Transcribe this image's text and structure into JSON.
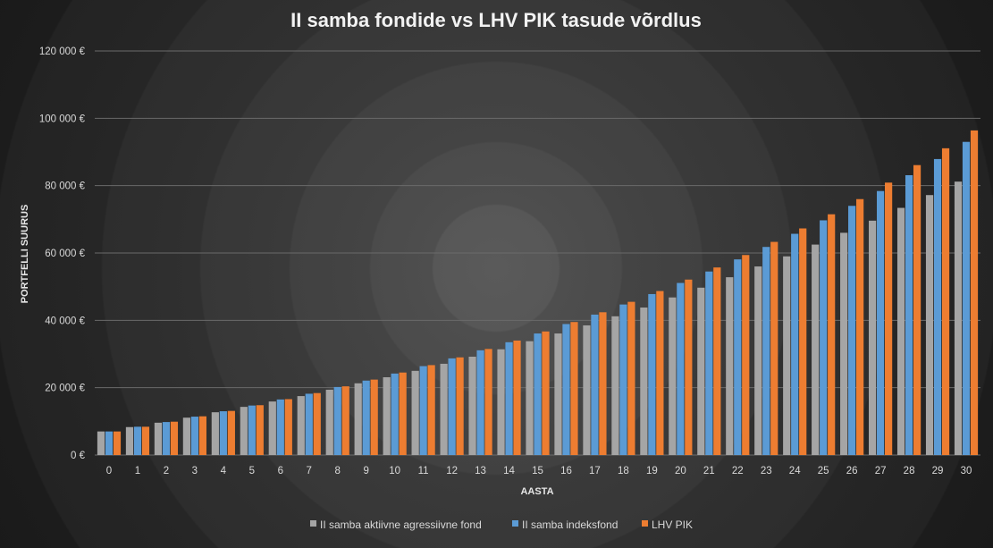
{
  "chart_data": {
    "type": "bar",
    "title": "II samba fondide vs LHV PIK tasude võrdlus",
    "xlabel": "AASTA",
    "ylabel": "PORTFELLI SUURUS",
    "ylim": [
      0,
      120000
    ],
    "y_ticks": [
      "0 €",
      "20 000 €",
      "40 000 €",
      "60 000 €",
      "80 000 €",
      "100 000 €",
      "120 000 €"
    ],
    "grid": true,
    "legend_position": "bottom",
    "categories": [
      "0",
      "1",
      "2",
      "3",
      "4",
      "5",
      "6",
      "7",
      "8",
      "9",
      "10",
      "11",
      "12",
      "13",
      "14",
      "15",
      "16",
      "17",
      "18",
      "19",
      "20",
      "21",
      "22",
      "23",
      "24",
      "25",
      "26",
      "27",
      "28",
      "29",
      "30"
    ],
    "series": [
      {
        "name": "II samba aktiivne agressiivne fond",
        "color": "#a5a5a5",
        "values": [
          7000,
          8300,
          9600,
          11100,
          12700,
          14300,
          15900,
          17500,
          19400,
          21300,
          23100,
          25000,
          27100,
          29200,
          31400,
          33800,
          36100,
          38500,
          41200,
          43800,
          46800,
          49700,
          52800,
          56000,
          59000,
          62500,
          66000,
          69600,
          73400,
          77200,
          81200
        ]
      },
      {
        "name": "II samba indeksfond",
        "color": "#5b9bd5",
        "values": [
          7000,
          8400,
          9800,
          11400,
          13000,
          14700,
          16500,
          18200,
          20200,
          22100,
          24200,
          26400,
          28700,
          31100,
          33500,
          36100,
          38900,
          41700,
          44700,
          47800,
          51100,
          54500,
          58100,
          61800,
          65700,
          69700,
          74000,
          78400,
          83100,
          87900,
          93000
        ]
      },
      {
        "name": "LHV PIK",
        "color": "#ed7d31",
        "values": [
          7000,
          8400,
          9900,
          11500,
          13100,
          14800,
          16600,
          18400,
          20400,
          22400,
          24500,
          26700,
          29000,
          31500,
          34000,
          36700,
          39500,
          42400,
          45500,
          48700,
          52100,
          55700,
          59400,
          63300,
          67300,
          71500,
          76000,
          80900,
          86100,
          91100,
          96400
        ]
      }
    ]
  }
}
